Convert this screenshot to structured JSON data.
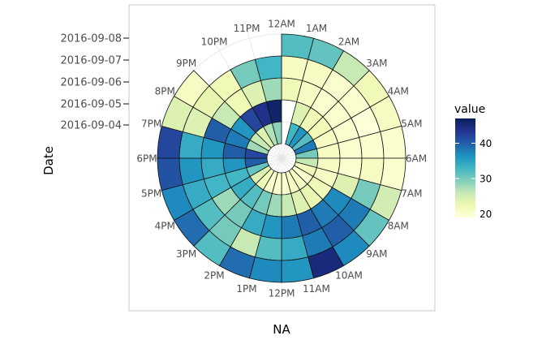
{
  "chart_data": {
    "type": "heatmap",
    "coord": "polar",
    "x_axis": {
      "label": "NA",
      "ticks": [
        "12AM",
        "1AM",
        "2AM",
        "3AM",
        "4AM",
        "5AM",
        "6AM",
        "7AM",
        "8AM",
        "9AM",
        "10AM",
        "11AM",
        "12PM",
        "1PM",
        "2PM",
        "3PM",
        "4PM",
        "5PM",
        "6PM",
        "7PM",
        "8PM",
        "9PM",
        "10PM",
        "11PM"
      ]
    },
    "y_axis": {
      "label": "Date",
      "ticks": [
        "2016-09-04",
        "2016-09-05",
        "2016-09-06",
        "2016-09-07",
        "2016-09-08"
      ]
    },
    "legend": {
      "title": "value",
      "position": "right",
      "min": 19,
      "max": 47,
      "breaks": [
        20,
        30,
        40
      ],
      "colors": [
        "#ffffd9",
        "#edf8b1",
        "#c7e9b4",
        "#7fcdbb",
        "#41b6c4",
        "#1d91c0",
        "#225ea8",
        "#253494",
        "#081d58"
      ]
    },
    "grid": true,
    "values": [
      [
        null,
        33,
        36,
        32,
        38,
        30,
        26,
        22,
        20,
        21,
        21,
        20,
        20,
        20,
        22,
        24,
        31,
        40,
        42,
        28,
        26,
        24,
        27,
        29
      ],
      [
        null,
        24,
        22,
        22,
        21,
        21,
        21,
        21,
        22,
        23,
        24,
        26,
        28,
        30,
        32,
        34,
        33,
        36,
        40,
        38,
        36,
        42,
        44,
        46
      ],
      [
        22,
        21,
        20,
        20,
        20,
        20,
        20,
        24,
        37,
        38,
        40,
        38,
        36,
        34,
        30,
        28,
        33,
        34,
        36,
        40,
        26,
        22,
        24,
        28
      ],
      [
        21,
        21,
        20,
        20,
        19,
        20,
        21,
        30,
        38,
        40,
        38,
        34,
        32,
        26,
        30,
        32,
        34,
        36,
        34,
        24,
        23,
        22,
        30,
        33
      ],
      [
        32,
        31,
        26,
        22,
        21,
        20,
        20,
        25,
        31,
        37,
        45,
        36,
        37,
        39,
        32,
        39,
        37,
        41,
        42,
        24,
        21,
        null,
        null,
        null
      ]
    ]
  }
}
